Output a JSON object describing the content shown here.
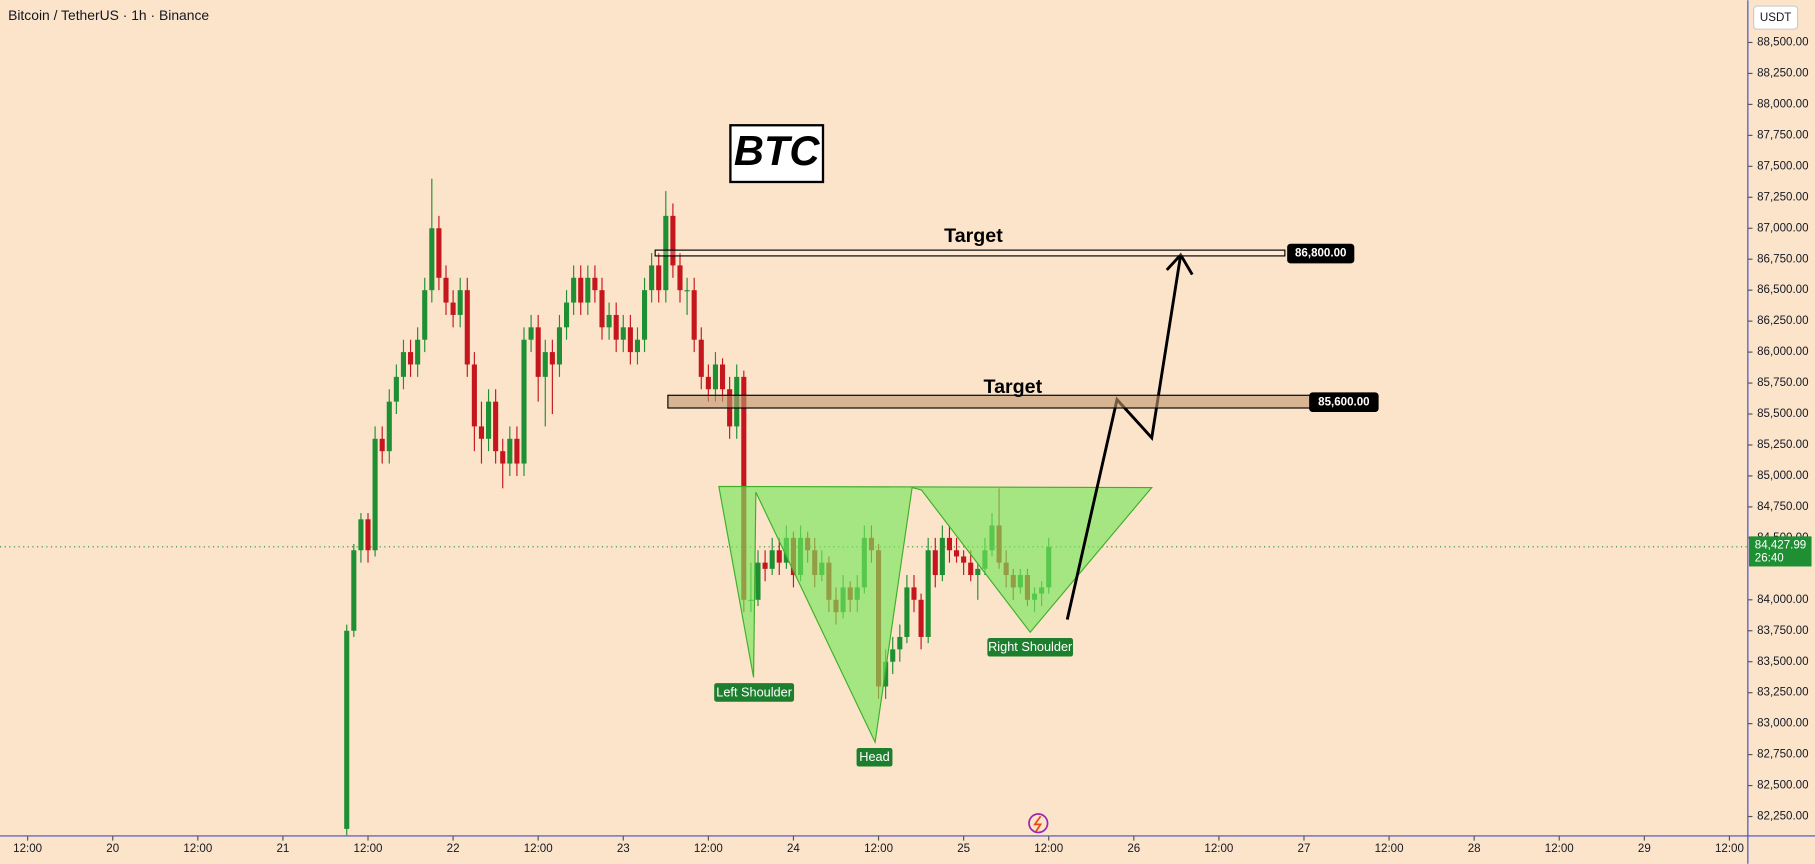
{
  "chart_data": {
    "type": "candlestick",
    "title": "Bitcoin / TetherUS · 1h · Binance",
    "currency": "USDT",
    "symbol": "BTC",
    "colors": {
      "up": "#1f8f34",
      "down": "#c4161c"
    },
    "xlim": [
      8.1,
      254.6
    ],
    "ylim": [
      82093,
      88841
    ],
    "xticks": [
      {
        "value": 12,
        "label": "12:00"
      },
      {
        "value": 24,
        "label": "20"
      },
      {
        "value": 36,
        "label": "12:00"
      },
      {
        "value": 48,
        "label": "21"
      },
      {
        "value": 60,
        "label": "12:00"
      },
      {
        "value": 72,
        "label": "22"
      },
      {
        "value": 84,
        "label": "12:00"
      },
      {
        "value": 96,
        "label": "23"
      },
      {
        "value": 108,
        "label": "12:00"
      },
      {
        "value": 120,
        "label": "24"
      },
      {
        "value": 132,
        "label": "12:00"
      },
      {
        "value": 144,
        "label": "25"
      },
      {
        "value": 156,
        "label": "12:00"
      },
      {
        "value": 168,
        "label": "26"
      },
      {
        "value": 180,
        "label": "12:00"
      },
      {
        "value": 192,
        "label": "27"
      },
      {
        "value": 204,
        "label": "12:00"
      },
      {
        "value": 216,
        "label": "28"
      },
      {
        "value": 228,
        "label": "12:00"
      },
      {
        "value": 240,
        "label": "29"
      },
      {
        "value": 252,
        "label": "12:00"
      }
    ],
    "yticks": [
      {
        "value": 82250,
        "label": "82,250.00"
      },
      {
        "value": 82500,
        "label": "82,500.00"
      },
      {
        "value": 82750,
        "label": "82,750.00"
      },
      {
        "value": 83000,
        "label": "83,000.00"
      },
      {
        "value": 83250,
        "label": "83,250.00"
      },
      {
        "value": 83500,
        "label": "83,500.00"
      },
      {
        "value": 83750,
        "label": "83,750.00"
      },
      {
        "value": 84000,
        "label": "84,000.00"
      },
      {
        "value": 84500,
        "label": "84,500.00"
      },
      {
        "value": 84750,
        "label": "84,750.00"
      },
      {
        "value": 85000,
        "label": "85,000.00"
      },
      {
        "value": 85250,
        "label": "85,250.00"
      },
      {
        "value": 85500,
        "label": "85,500.00"
      },
      {
        "value": 85750,
        "label": "85,750.00"
      },
      {
        "value": 86000,
        "label": "86,000.00"
      },
      {
        "value": 86250,
        "label": "86,250.00"
      },
      {
        "value": 86500,
        "label": "86,500.00"
      },
      {
        "value": 86750,
        "label": "86,750.00"
      },
      {
        "value": 87000,
        "label": "87,000.00"
      },
      {
        "value": 87250,
        "label": "87,250.00"
      },
      {
        "value": 87500,
        "label": "87,500.00"
      },
      {
        "value": 87750,
        "label": "87,750.00"
      },
      {
        "value": 88000,
        "label": "88,000.00"
      },
      {
        "value": 88250,
        "label": "88,250.00"
      },
      {
        "value": 88500,
        "label": "88,500.00"
      }
    ],
    "x": [
      57,
      58,
      59,
      60,
      61,
      62,
      63,
      64,
      65,
      66,
      67,
      68,
      69,
      70,
      71,
      72,
      73,
      74,
      75,
      76,
      77,
      78,
      79,
      80,
      81,
      82,
      83,
      84,
      85,
      86,
      87,
      88,
      89,
      90,
      91,
      92,
      93,
      94,
      95,
      96,
      97,
      98,
      99,
      100,
      101,
      102,
      103,
      104,
      105,
      106,
      107,
      108,
      109,
      110,
      111,
      112,
      113,
      114,
      115,
      116,
      117,
      118,
      119,
      120,
      121,
      122,
      123,
      124,
      125,
      126,
      127,
      128,
      129,
      130,
      131,
      132,
      133,
      134,
      135,
      136,
      137,
      138,
      139,
      140,
      141,
      142,
      143,
      144,
      145,
      146,
      147,
      148,
      149,
      150,
      151,
      152,
      153,
      154,
      155,
      156
    ],
    "candles": [
      [
        82150,
        83800,
        82100,
        83750
      ],
      [
        83750,
        84450,
        83700,
        84400
      ],
      [
        84400,
        84700,
        84300,
        84650
      ],
      [
        84650,
        84700,
        84300,
        84400
      ],
      [
        84400,
        85400,
        84350,
        85300
      ],
      [
        85300,
        85400,
        85100,
        85200
      ],
      [
        85200,
        85700,
        85100,
        85600
      ],
      [
        85600,
        85900,
        85500,
        85800
      ],
      [
        85800,
        86100,
        85700,
        86000
      ],
      [
        86000,
        86100,
        85800,
        85900
      ],
      [
        85900,
        86200,
        85800,
        86100
      ],
      [
        86100,
        86600,
        86000,
        86500
      ],
      [
        86500,
        87400,
        86400,
        87000
      ],
      [
        87000,
        87100,
        86500,
        86600
      ],
      [
        86600,
        86700,
        86300,
        86400
      ],
      [
        86400,
        86500,
        86200,
        86300
      ],
      [
        86300,
        86600,
        86200,
        86500
      ],
      [
        86500,
        86600,
        85800,
        85900
      ],
      [
        85900,
        86000,
        85200,
        85400
      ],
      [
        85400,
        85600,
        85100,
        85300
      ],
      [
        85300,
        85700,
        85200,
        85600
      ],
      [
        85600,
        85700,
        85100,
        85200
      ],
      [
        85200,
        85300,
        84900,
        85100
      ],
      [
        85100,
        85400,
        85000,
        85300
      ],
      [
        85300,
        85400,
        85000,
        85100
      ],
      [
        85100,
        86200,
        85000,
        86100
      ],
      [
        86100,
        86300,
        86000,
        86200
      ],
      [
        86200,
        86300,
        85600,
        85800
      ],
      [
        85800,
        86100,
        85400,
        86000
      ],
      [
        86000,
        86100,
        85500,
        85900
      ],
      [
        85900,
        86300,
        85800,
        86200
      ],
      [
        86200,
        86500,
        86100,
        86400
      ],
      [
        86400,
        86700,
        86300,
        86600
      ],
      [
        86600,
        86700,
        86300,
        86400
      ],
      [
        86400,
        86700,
        86300,
        86600
      ],
      [
        86600,
        86700,
        86400,
        86500
      ],
      [
        86500,
        86600,
        86100,
        86200
      ],
      [
        86200,
        86400,
        86100,
        86300
      ],
      [
        86300,
        86400,
        86000,
        86100
      ],
      [
        86100,
        86300,
        86000,
        86200
      ],
      [
        86200,
        86300,
        85900,
        86000
      ],
      [
        86000,
        86200,
        85900,
        86100
      ],
      [
        86100,
        86600,
        86000,
        86500
      ],
      [
        86500,
        86800,
        86400,
        86700
      ],
      [
        86700,
        86800,
        86400,
        86500
      ],
      [
        86500,
        87300,
        86400,
        87100
      ],
      [
        87100,
        87200,
        86600,
        86700
      ],
      [
        86700,
        86800,
        86400,
        86500
      ],
      [
        86500,
        86600,
        86300,
        86500
      ],
      [
        86500,
        86600,
        86000,
        86100
      ],
      [
        86100,
        86200,
        85700,
        85800
      ],
      [
        85800,
        85900,
        85600,
        85700
      ],
      [
        85700,
        86000,
        85600,
        85900
      ],
      [
        85900,
        85950,
        85600,
        85700
      ],
      [
        85700,
        85800,
        85300,
        85400
      ],
      [
        85400,
        85900,
        85300,
        85800
      ],
      [
        85800,
        85850,
        83900,
        84000
      ],
      [
        84000,
        84300,
        83900,
        84000
      ],
      [
        84000,
        84400,
        83950,
        84300
      ],
      [
        84300,
        84400,
        84150,
        84250
      ],
      [
        84250,
        84500,
        84200,
        84400
      ],
      [
        84400,
        84500,
        84200,
        84300
      ],
      [
        84300,
        84600,
        84250,
        84500
      ],
      [
        84500,
        84550,
        84100,
        84200
      ],
      [
        84200,
        84600,
        84150,
        84500
      ],
      [
        84500,
        84550,
        84300,
        84400
      ],
      [
        84400,
        84500,
        84100,
        84200
      ],
      [
        84200,
        84400,
        84150,
        84300
      ],
      [
        84300,
        84350,
        83900,
        84000
      ],
      [
        84000,
        84100,
        83800,
        83900
      ],
      [
        83900,
        84200,
        83850,
        84100
      ],
      [
        84100,
        84150,
        83900,
        84000
      ],
      [
        84000,
        84200,
        83900,
        84100
      ],
      [
        84100,
        84600,
        84050,
        84500
      ],
      [
        84500,
        84600,
        84300,
        84400
      ],
      [
        84400,
        84450,
        83200,
        83300
      ],
      [
        83300,
        83600,
        83200,
        83500
      ],
      [
        83500,
        83700,
        83400,
        83600
      ],
      [
        83600,
        83800,
        83500,
        83700
      ],
      [
        83700,
        84200,
        83650,
        84100
      ],
      [
        84100,
        84200,
        83900,
        84000
      ],
      [
        84000,
        84050,
        83600,
        83700
      ],
      [
        83700,
        84500,
        83650,
        84400
      ],
      [
        84400,
        84500,
        84100,
        84200
      ],
      [
        84200,
        84600,
        84150,
        84500
      ],
      [
        84500,
        84600,
        84300,
        84400
      ],
      [
        84400,
        84500,
        84300,
        84350
      ],
      [
        84350,
        84400,
        84200,
        84300
      ],
      [
        84300,
        84400,
        84150,
        84200
      ],
      [
        84200,
        84300,
        84000,
        84250
      ],
      [
        84250,
        84500,
        84200,
        84400
      ],
      [
        84400,
        84700,
        84350,
        84600
      ],
      [
        84600,
        84900,
        84250,
        84300
      ],
      [
        84300,
        84400,
        84100,
        84200
      ],
      [
        84200,
        84250,
        84000,
        84100
      ],
      [
        84100,
        84250,
        84050,
        84200
      ],
      [
        84200,
        84250,
        83950,
        84000
      ],
      [
        84000,
        84100,
        83900,
        84050
      ],
      [
        84050,
        84150,
        83950,
        84100
      ],
      [
        84100,
        84500,
        84050,
        84427.99
      ]
    ],
    "levels": [
      {
        "value": 86800,
        "label": "86,800.00",
        "text": "Target"
      },
      {
        "value": 85600,
        "label": "85,600.00",
        "text": "Target"
      }
    ],
    "last_price": {
      "value": 84427.99,
      "label": "84,427.99",
      "countdown": "26:40"
    },
    "pattern_labels": [
      "Left Shoulder",
      "Head",
      "Right Shoulder"
    ]
  }
}
